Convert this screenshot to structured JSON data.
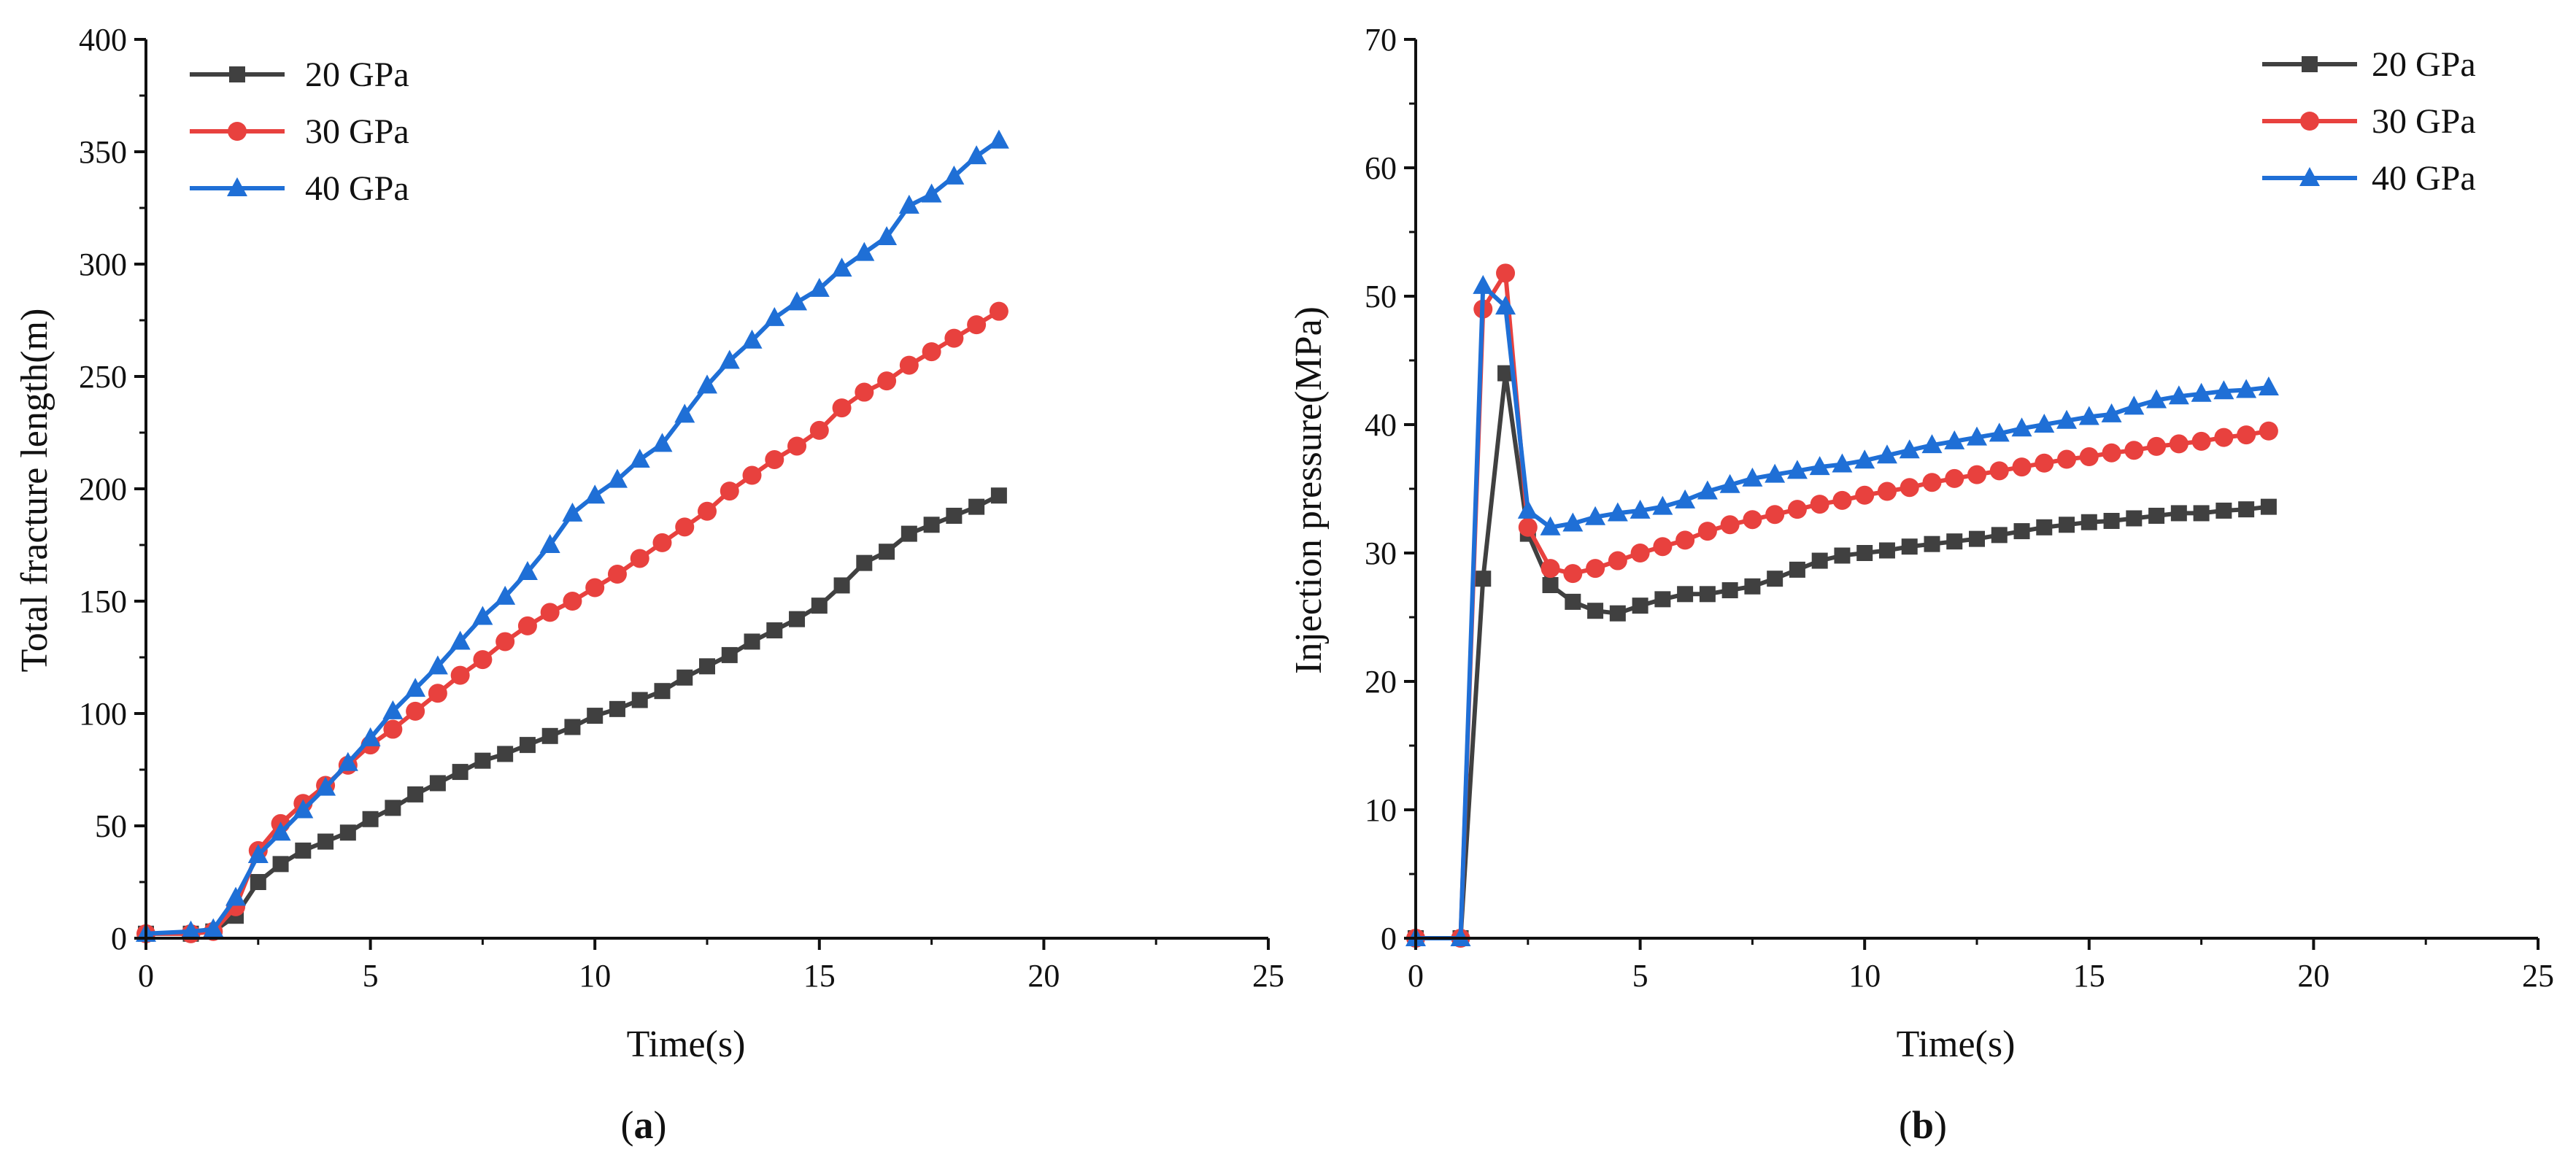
{
  "chart_data": [
    {
      "panel_label": "a",
      "type": "line",
      "xlabel": "Time(s)",
      "ylabel": "Total fracture length(m)",
      "xlim": [
        0,
        25
      ],
      "ylim": [
        0,
        400
      ],
      "xticks": [
        0,
        5,
        10,
        15,
        20,
        25
      ],
      "yticks": [
        0,
        50,
        100,
        150,
        200,
        250,
        300,
        350,
        400
      ],
      "legend_position": "top-left",
      "grid": false,
      "series": [
        {
          "name": "20 GPa",
          "color": "#404040",
          "marker": "square",
          "points": [
            [
              0,
              2
            ],
            [
              1,
              2
            ],
            [
              1.5,
              3
            ],
            [
              2,
              10
            ],
            [
              2.5,
              25
            ],
            [
              3,
              33
            ],
            [
              3.5,
              39
            ],
            [
              4,
              43
            ],
            [
              4.5,
              47
            ],
            [
              5,
              53
            ],
            [
              5.5,
              58
            ],
            [
              6,
              64
            ],
            [
              6.5,
              69
            ],
            [
              7,
              74
            ],
            [
              7.5,
              79
            ],
            [
              8,
              82
            ],
            [
              8.5,
              86
            ],
            [
              9,
              90
            ],
            [
              9.5,
              94
            ],
            [
              10,
              99
            ],
            [
              10.5,
              102
            ],
            [
              11,
              106
            ],
            [
              11.5,
              110
            ],
            [
              12,
              116
            ],
            [
              12.5,
              121
            ],
            [
              13,
              126
            ],
            [
              13.5,
              132
            ],
            [
              14,
              137
            ],
            [
              14.5,
              142
            ],
            [
              15,
              148
            ],
            [
              15.5,
              157
            ],
            [
              16,
              167
            ],
            [
              16.5,
              172
            ],
            [
              17,
              180
            ],
            [
              17.5,
              184
            ],
            [
              18,
              188
            ],
            [
              18.5,
              192
            ],
            [
              19,
              197
            ]
          ]
        },
        {
          "name": "30 GPa",
          "color": "#e8413e",
          "marker": "circle",
          "points": [
            [
              0,
              2
            ],
            [
              1,
              2
            ],
            [
              1.5,
              3
            ],
            [
              2,
              14
            ],
            [
              2.5,
              39
            ],
            [
              3,
              51
            ],
            [
              3.5,
              60
            ],
            [
              4,
              68
            ],
            [
              4.5,
              77
            ],
            [
              5,
              86
            ],
            [
              5.5,
              93
            ],
            [
              6,
              101
            ],
            [
              6.5,
              109
            ],
            [
              7,
              117
            ],
            [
              7.5,
              124
            ],
            [
              8,
              132
            ],
            [
              8.5,
              139
            ],
            [
              9,
              145
            ],
            [
              9.5,
              150
            ],
            [
              10,
              156
            ],
            [
              10.5,
              162
            ],
            [
              11,
              169
            ],
            [
              11.5,
              176
            ],
            [
              12,
              183
            ],
            [
              12.5,
              190
            ],
            [
              13,
              199
            ],
            [
              13.5,
              206
            ],
            [
              14,
              213
            ],
            [
              14.5,
              219
            ],
            [
              15,
              226
            ],
            [
              15.5,
              236
            ],
            [
              16,
              243
            ],
            [
              16.5,
              248
            ],
            [
              17,
              255
            ],
            [
              17.5,
              261
            ],
            [
              18,
              267
            ],
            [
              18.5,
              273
            ],
            [
              19,
              279
            ]
          ]
        },
        {
          "name": "40 GPa",
          "color": "#1f6fd6",
          "marker": "triangle",
          "points": [
            [
              0,
              2
            ],
            [
              1,
              3
            ],
            [
              1.5,
              4
            ],
            [
              2,
              18
            ],
            [
              2.5,
              37
            ],
            [
              3,
              47
            ],
            [
              3.5,
              57
            ],
            [
              4,
              67
            ],
            [
              4.5,
              78
            ],
            [
              5,
              89
            ],
            [
              5.5,
              101
            ],
            [
              6,
              111
            ],
            [
              6.5,
              121
            ],
            [
              7,
              132
            ],
            [
              7.5,
              143
            ],
            [
              8,
              152
            ],
            [
              8.5,
              163
            ],
            [
              9,
              175
            ],
            [
              9.5,
              189
            ],
            [
              10,
              197
            ],
            [
              10.5,
              204
            ],
            [
              11,
              213
            ],
            [
              11.5,
              220
            ],
            [
              12,
              233
            ],
            [
              12.5,
              246
            ],
            [
              13,
              257
            ],
            [
              13.5,
              266
            ],
            [
              14,
              276
            ],
            [
              14.5,
              283
            ],
            [
              15,
              289
            ],
            [
              15.5,
              298
            ],
            [
              16,
              305
            ],
            [
              16.5,
              312
            ],
            [
              17,
              326
            ],
            [
              17.5,
              331
            ],
            [
              18,
              339
            ],
            [
              18.5,
              348
            ],
            [
              19,
              355
            ]
          ]
        }
      ]
    },
    {
      "panel_label": "b",
      "type": "line",
      "xlabel": "Time(s)",
      "ylabel": "Injection pressure(MPa)",
      "xlim": [
        0,
        25
      ],
      "ylim": [
        0,
        70
      ],
      "xticks": [
        0,
        5,
        10,
        15,
        20,
        25
      ],
      "yticks": [
        0,
        10,
        20,
        30,
        40,
        50,
        60,
        70
      ],
      "legend_position": "top-right",
      "grid": false,
      "series": [
        {
          "name": "20 GPa",
          "color": "#404040",
          "marker": "square",
          "points": [
            [
              0,
              0
            ],
            [
              1,
              0
            ],
            [
              1.5,
              28
            ],
            [
              2,
              44
            ],
            [
              2.5,
              31.5
            ],
            [
              3,
              27.5
            ],
            [
              3.5,
              26.2
            ],
            [
              4,
              25.5
            ],
            [
              4.5,
              25.3
            ],
            [
              5,
              25.9
            ],
            [
              5.5,
              26.4
            ],
            [
              6,
              26.8
            ],
            [
              6.5,
              26.8
            ],
            [
              7,
              27.1
            ],
            [
              7.5,
              27.4
            ],
            [
              8,
              28
            ],
            [
              8.5,
              28.7
            ],
            [
              9,
              29.4
            ],
            [
              9.5,
              29.8
            ],
            [
              10,
              30
            ],
            [
              10.5,
              30.2
            ],
            [
              11,
              30.5
            ],
            [
              11.5,
              30.7
            ],
            [
              12,
              30.9
            ],
            [
              12.5,
              31.1
            ],
            [
              13,
              31.4
            ],
            [
              13.5,
              31.7
            ],
            [
              14,
              32
            ],
            [
              14.5,
              32.2
            ],
            [
              15,
              32.4
            ],
            [
              15.5,
              32.5
            ],
            [
              16,
              32.7
            ],
            [
              16.5,
              32.9
            ],
            [
              17,
              33.1
            ],
            [
              17.5,
              33.1
            ],
            [
              18,
              33.3
            ],
            [
              18.5,
              33.4
            ],
            [
              19,
              33.6
            ]
          ]
        },
        {
          "name": "30 GPa",
          "color": "#e8413e",
          "marker": "circle",
          "points": [
            [
              0,
              0
            ],
            [
              1,
              0
            ],
            [
              1.5,
              49
            ],
            [
              2,
              51.8
            ],
            [
              2.5,
              32
            ],
            [
              3,
              28.8
            ],
            [
              3.5,
              28.4
            ],
            [
              4,
              28.8
            ],
            [
              4.5,
              29.4
            ],
            [
              5,
              30
            ],
            [
              5.5,
              30.5
            ],
            [
              6,
              31
            ],
            [
              6.5,
              31.7
            ],
            [
              7,
              32.2
            ],
            [
              7.5,
              32.6
            ],
            [
              8,
              33
            ],
            [
              8.5,
              33.4
            ],
            [
              9,
              33.8
            ],
            [
              9.5,
              34.1
            ],
            [
              10,
              34.5
            ],
            [
              10.5,
              34.8
            ],
            [
              11,
              35.1
            ],
            [
              11.5,
              35.5
            ],
            [
              12,
              35.8
            ],
            [
              12.5,
              36.1
            ],
            [
              13,
              36.4
            ],
            [
              13.5,
              36.7
            ],
            [
              14,
              37
            ],
            [
              14.5,
              37.3
            ],
            [
              15,
              37.5
            ],
            [
              15.5,
              37.8
            ],
            [
              16,
              38
            ],
            [
              16.5,
              38.3
            ],
            [
              17,
              38.5
            ],
            [
              17.5,
              38.7
            ],
            [
              18,
              39
            ],
            [
              18.5,
              39.2
            ],
            [
              19,
              39.5
            ]
          ]
        },
        {
          "name": "40 GPa",
          "color": "#1f6fd6",
          "marker": "triangle",
          "points": [
            [
              0,
              0
            ],
            [
              1,
              0
            ],
            [
              1.5,
              50.8
            ],
            [
              2,
              49.2
            ],
            [
              2.5,
              33.3
            ],
            [
              3,
              32
            ],
            [
              3.5,
              32.3
            ],
            [
              4,
              32.8
            ],
            [
              4.5,
              33.1
            ],
            [
              5,
              33.3
            ],
            [
              5.5,
              33.6
            ],
            [
              6,
              34.1
            ],
            [
              6.5,
              34.8
            ],
            [
              7,
              35.3
            ],
            [
              7.5,
              35.8
            ],
            [
              8,
              36.1
            ],
            [
              8.5,
              36.4
            ],
            [
              9,
              36.7
            ],
            [
              9.5,
              36.9
            ],
            [
              10,
              37.2
            ],
            [
              10.5,
              37.6
            ],
            [
              11,
              38
            ],
            [
              11.5,
              38.4
            ],
            [
              12,
              38.7
            ],
            [
              12.5,
              39
            ],
            [
              13,
              39.3
            ],
            [
              13.5,
              39.7
            ],
            [
              14,
              40
            ],
            [
              14.5,
              40.3
            ],
            [
              15,
              40.6
            ],
            [
              15.5,
              40.8
            ],
            [
              16,
              41.4
            ],
            [
              16.5,
              41.9
            ],
            [
              17,
              42.2
            ],
            [
              17.5,
              42.4
            ],
            [
              18,
              42.6
            ],
            [
              18.5,
              42.7
            ],
            [
              19,
              42.9
            ]
          ]
        }
      ]
    }
  ]
}
